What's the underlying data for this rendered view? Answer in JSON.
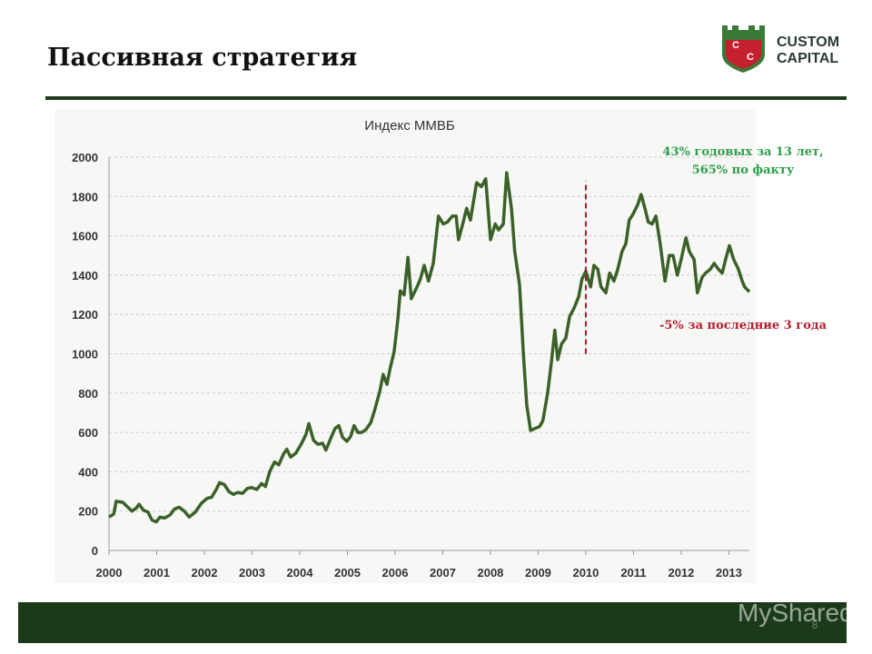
{
  "header": {
    "title": "Пассивная стратегия"
  },
  "logo": {
    "letters": [
      "C",
      "C"
    ],
    "lines": [
      "CUSTOM",
      "CAPITAL"
    ]
  },
  "page_number": "8",
  "watermark": "MyShared",
  "chart_data": {
    "type": "line",
    "title": "Индекс ММВБ",
    "color": "#3b6128",
    "x": [
      2000.0,
      2000.1,
      2000.15,
      2000.29,
      2000.48,
      2000.57,
      2000.63,
      2000.72,
      2000.82,
      2000.9,
      2000.99,
      2001.07,
      2001.16,
      2001.28,
      2001.37,
      2001.47,
      2001.58,
      2001.68,
      2001.81,
      2001.94,
      2002.06,
      2002.15,
      2002.25,
      2002.32,
      2002.42,
      2002.51,
      2002.61,
      2002.7,
      2002.8,
      2002.9,
      2002.99,
      2003.1,
      2003.2,
      2003.28,
      2003.37,
      2003.47,
      2003.56,
      2003.66,
      2003.73,
      2003.81,
      2003.92,
      2004.04,
      2004.13,
      2004.19,
      2004.29,
      2004.38,
      2004.48,
      2004.55,
      2004.65,
      2004.74,
      2004.82,
      2004.9,
      2004.99,
      2005.07,
      2005.14,
      2005.22,
      2005.3,
      2005.39,
      2005.49,
      2005.58,
      2005.68,
      2005.75,
      2005.83,
      2005.9,
      2005.98,
      2006.06,
      2006.11,
      2006.19,
      2006.27,
      2006.34,
      2006.46,
      2006.53,
      2006.61,
      2006.7,
      2006.8,
      2006.91,
      2007.01,
      2007.1,
      2007.2,
      2007.28,
      2007.33,
      2007.43,
      2007.5,
      2007.58,
      2007.71,
      2007.81,
      2007.9,
      2008.0,
      2008.1,
      2008.17,
      2008.27,
      2008.34,
      2008.44,
      2008.51,
      2008.61,
      2008.69,
      2008.76,
      2008.84,
      2008.93,
      2009.03,
      2009.1,
      2009.2,
      2009.28,
      2009.35,
      2009.41,
      2009.49,
      2009.58,
      2009.66,
      2009.75,
      2009.85,
      2009.92,
      2010.0,
      2010.1,
      2010.17,
      2010.25,
      2010.32,
      2010.42,
      2010.5,
      2010.59,
      2010.67,
      2010.76,
      2010.84,
      2010.91,
      2010.99,
      2011.09,
      2011.16,
      2011.24,
      2011.31,
      2011.39,
      2011.47,
      2011.56,
      2011.66,
      2011.75,
      2011.83,
      2011.92,
      2012.0,
      2012.1,
      2012.17,
      2012.27,
      2012.34,
      2012.44,
      2012.51,
      2012.61,
      2012.69,
      2012.78,
      2012.86,
      2012.93,
      2013.01,
      2013.1,
      2013.2,
      2013.28,
      2013.33,
      2013.43
    ],
    "values": [
      170,
      185,
      250,
      245,
      200,
      215,
      235,
      205,
      195,
      155,
      145,
      170,
      165,
      180,
      210,
      220,
      200,
      170,
      195,
      240,
      265,
      270,
      310,
      345,
      335,
      300,
      285,
      295,
      290,
      315,
      320,
      310,
      340,
      325,
      400,
      450,
      435,
      490,
      515,
      475,
      495,
      545,
      590,
      645,
      560,
      540,
      545,
      510,
      570,
      620,
      635,
      575,
      555,
      580,
      635,
      600,
      600,
      615,
      650,
      720,
      810,
      895,
      845,
      930,
      1010,
      1180,
      1320,
      1300,
      1490,
      1280,
      1340,
      1380,
      1450,
      1370,
      1460,
      1700,
      1660,
      1670,
      1700,
      1700,
      1580,
      1670,
      1740,
      1680,
      1870,
      1850,
      1890,
      1580,
      1660,
      1630,
      1660,
      1920,
      1740,
      1520,
      1350,
      1000,
      740,
      610,
      620,
      630,
      660,
      800,
      960,
      1120,
      970,
      1050,
      1080,
      1190,
      1230,
      1290,
      1380,
      1420,
      1340,
      1450,
      1430,
      1340,
      1310,
      1410,
      1370,
      1430,
      1520,
      1560,
      1680,
      1710,
      1760,
      1810,
      1740,
      1670,
      1660,
      1700,
      1560,
      1370,
      1500,
      1500,
      1400,
      1480,
      1590,
      1520,
      1480,
      1310,
      1390,
      1410,
      1430,
      1460,
      1430,
      1410,
      1480,
      1550,
      1480,
      1430,
      1370,
      1340,
      1315
    ],
    "xlim": [
      2000,
      2013.43
    ],
    "ylim": [
      0,
      2000
    ],
    "xticks": [
      2000,
      2001,
      2002,
      2003,
      2004,
      2005,
      2006,
      2007,
      2008,
      2009,
      2010,
      2011,
      2012,
      2013
    ],
    "yticks": [
      0,
      200,
      400,
      600,
      800,
      1000,
      1200,
      1400,
      1600,
      1800,
      2000
    ],
    "grid": true,
    "reference_line": {
      "x": 2010,
      "y": [
        1000,
        1880
      ],
      "color": "#a31d2b"
    },
    "annotations": [
      {
        "lines": [
          "43% годовых за 13 лет,",
          "565% по факту"
        ],
        "color": "#2e9e4a"
      },
      {
        "lines": [
          "-5% за последние 3 года"
        ],
        "color": "#b0202e"
      }
    ]
  }
}
